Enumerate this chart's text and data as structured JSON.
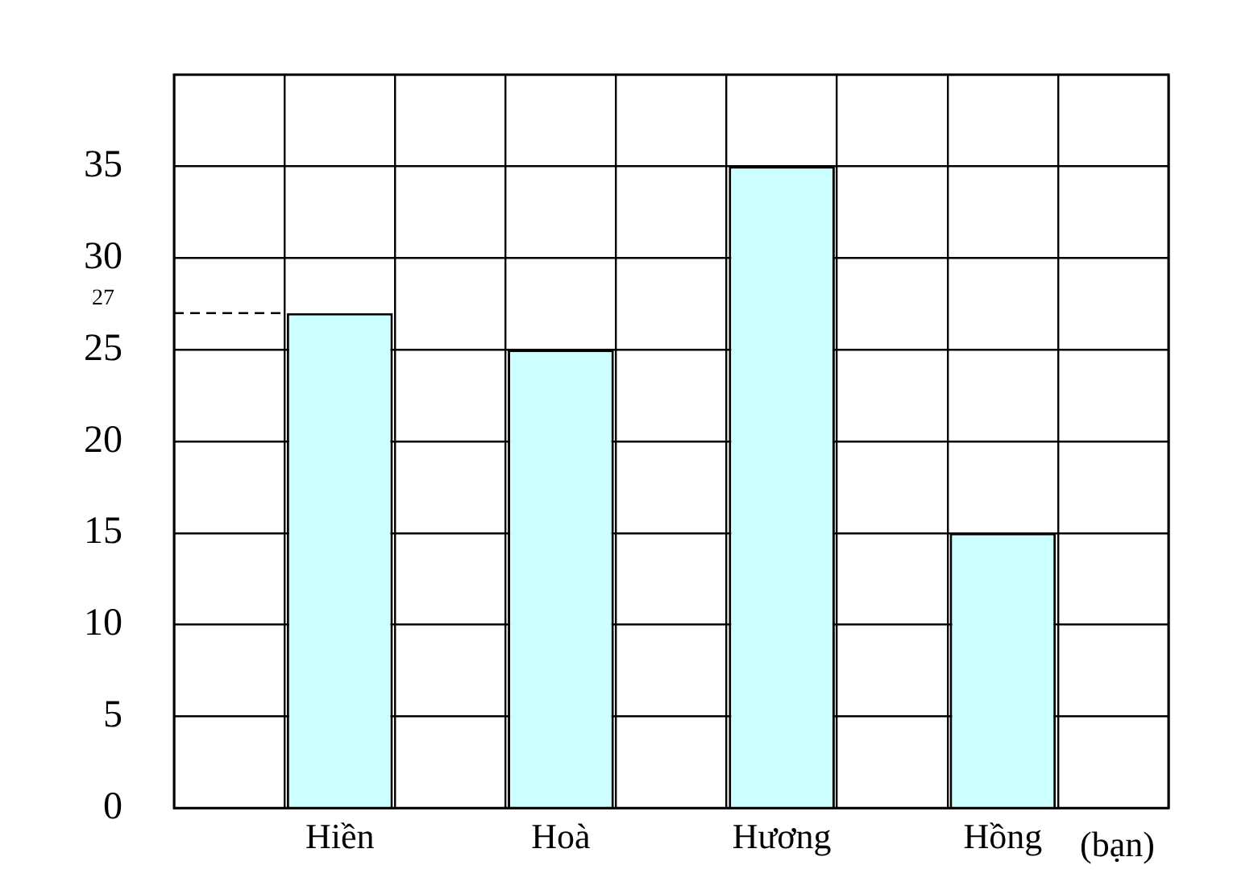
{
  "chart_data": {
    "type": "bar",
    "xlabel": "(bạn)",
    "categories": [
      null,
      "Hiền",
      null,
      "Hoà",
      null,
      "Hương",
      null,
      "Hồng",
      null
    ],
    "values": [
      null,
      27,
      null,
      25,
      null,
      35,
      null,
      15,
      null
    ],
    "color": "#ccffff",
    "ylim": [
      0,
      40
    ],
    "yticks": [
      0,
      5,
      10,
      15,
      20,
      25,
      30,
      35
    ],
    "grid": true,
    "legend": false,
    "ref_lines": [
      {
        "axis": "y",
        "value": 27,
        "label": "27",
        "line_style": "dashed",
        "color": "#000000"
      }
    ]
  }
}
